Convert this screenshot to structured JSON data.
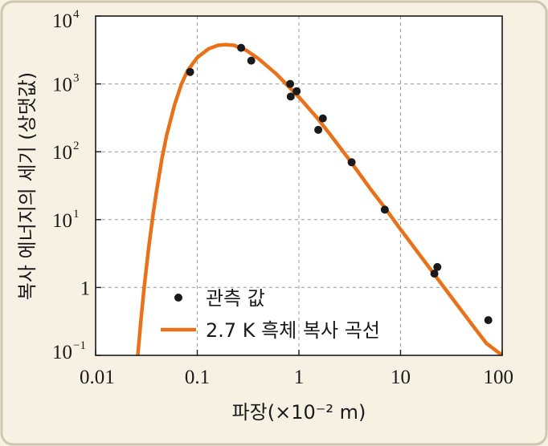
{
  "chart_data": {
    "type": "scatter",
    "xscale": "log",
    "yscale": "log",
    "xlim": [
      0.01,
      100
    ],
    "ylim": [
      0.1,
      10000
    ],
    "xlabel": "파장(×10⁻² m)",
    "ylabel": "복사 에너지의 세기 (상댓값)",
    "grid": true,
    "x_ticks": [
      {
        "value": 0.01,
        "label": "0.01"
      },
      {
        "value": 0.1,
        "label": "0.1"
      },
      {
        "value": 1,
        "label": "1"
      },
      {
        "value": 10,
        "label": "10"
      },
      {
        "value": 100,
        "label": "100"
      }
    ],
    "y_ticks": [
      {
        "value": 0.1,
        "base": "10",
        "exp": "−1"
      },
      {
        "value": 1,
        "base": "1",
        "exp": ""
      },
      {
        "value": 10,
        "base": "10",
        "exp": "1"
      },
      {
        "value": 100,
        "base": "10",
        "exp": "2"
      },
      {
        "value": 1000,
        "base": "10",
        "exp": "3"
      },
      {
        "value": 10000,
        "base": "10",
        "exp": "4"
      }
    ],
    "legend_position": "bottom-left",
    "series": [
      {
        "name": "관측 값",
        "kind": "scatter",
        "color": "#1a1a1a",
        "points": [
          {
            "x": 0.085,
            "y": 1500
          },
          {
            "x": 0.27,
            "y": 3400
          },
          {
            "x": 0.34,
            "y": 2200
          },
          {
            "x": 0.82,
            "y": 1000
          },
          {
            "x": 0.83,
            "y": 650
          },
          {
            "x": 0.95,
            "y": 780
          },
          {
            "x": 1.55,
            "y": 210
          },
          {
            "x": 1.72,
            "y": 310
          },
          {
            "x": 3.3,
            "y": 70
          },
          {
            "x": 7.0,
            "y": 14
          },
          {
            "x": 21.5,
            "y": 1.6
          },
          {
            "x": 23.0,
            "y": 2.0
          },
          {
            "x": 73.0,
            "y": 0.33
          }
        ]
      },
      {
        "name": "2.7 K 흑체 복사 곡선",
        "kind": "line",
        "color": "#e8711a",
        "temperature_K": 2.7,
        "points": [
          {
            "x": 0.026,
            "y": 0.1
          },
          {
            "x": 0.028,
            "y": 0.35
          },
          {
            "x": 0.03,
            "y": 1.0
          },
          {
            "x": 0.033,
            "y": 3.5
          },
          {
            "x": 0.037,
            "y": 13
          },
          {
            "x": 0.04,
            "y": 28
          },
          {
            "x": 0.045,
            "y": 80
          },
          {
            "x": 0.05,
            "y": 175
          },
          {
            "x": 0.06,
            "y": 500
          },
          {
            "x": 0.07,
            "y": 1000
          },
          {
            "x": 0.08,
            "y": 1550
          },
          {
            "x": 0.1,
            "y": 2450
          },
          {
            "x": 0.13,
            "y": 3300
          },
          {
            "x": 0.16,
            "y": 3700
          },
          {
            "x": 0.19,
            "y": 3800
          },
          {
            "x": 0.23,
            "y": 3700
          },
          {
            "x": 0.3,
            "y": 3150
          },
          {
            "x": 0.4,
            "y": 2350
          },
          {
            "x": 0.6,
            "y": 1400
          },
          {
            "x": 0.8,
            "y": 900
          },
          {
            "x": 1.0,
            "y": 640
          },
          {
            "x": 1.5,
            "y": 320
          },
          {
            "x": 2.0,
            "y": 185
          },
          {
            "x": 3.0,
            "y": 83
          },
          {
            "x": 5.0,
            "y": 29
          },
          {
            "x": 7.0,
            "y": 15
          },
          {
            "x": 10.0,
            "y": 7.2
          },
          {
            "x": 15.0,
            "y": 3.2
          },
          {
            "x": 20.0,
            "y": 1.8
          },
          {
            "x": 30.0,
            "y": 0.8
          },
          {
            "x": 50.0,
            "y": 0.29
          },
          {
            "x": 70.0,
            "y": 0.15
          },
          {
            "x": 100.0,
            "y": 0.1
          }
        ]
      }
    ]
  }
}
